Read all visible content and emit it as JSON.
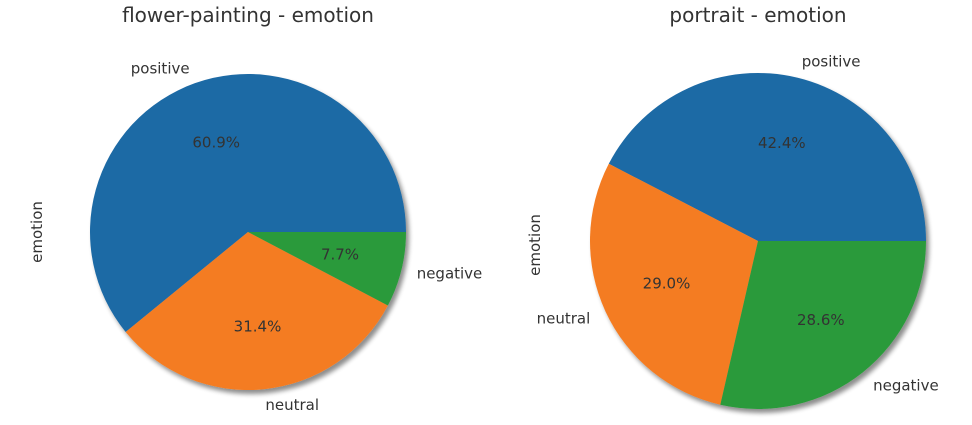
{
  "chart_data": [
    {
      "type": "pie",
      "title": "flower-painting - emotion",
      "ylabel": "emotion",
      "legend": "none",
      "shadow": true,
      "series": [
        {
          "labels": [
            "positive",
            "neutral",
            "negative"
          ],
          "values": [
            60.9,
            31.4,
            7.7
          ],
          "value_labels": [
            "60.9%",
            "31.4%",
            "7.7%"
          ],
          "colors": [
            "#1f6aa5",
            "#f47c20",
            "#2a9a3a"
          ]
        }
      ]
    },
    {
      "type": "pie",
      "title": "portrait - emotion",
      "ylabel": "emotion",
      "legend": "none",
      "shadow": true,
      "series": [
        {
          "labels": [
            "positive",
            "neutral",
            "negative"
          ],
          "values": [
            42.4,
            29.0,
            28.6
          ],
          "value_labels": [
            "42.4%",
            "29.0%",
            "28.6%"
          ],
          "colors": [
            "#1f6aa5",
            "#f47c20",
            "#2a9a3a"
          ]
        }
      ]
    }
  ]
}
